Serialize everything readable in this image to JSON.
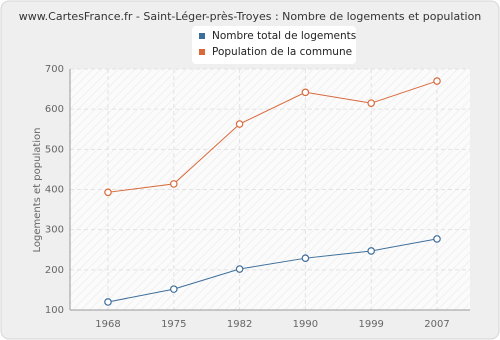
{
  "chart_data": {
    "type": "line",
    "title": "www.CartesFrance.fr - Saint-Léger-près-Troyes : Nombre de logements et population",
    "y_label": "Logements et population",
    "categories": [
      "1968",
      "1975",
      "1982",
      "1990",
      "1999",
      "2007"
    ],
    "series": [
      {
        "name": "Nombre total de logements",
        "color": "#3e6e9a",
        "values": [
          120,
          152,
          202,
          229,
          247,
          277
        ]
      },
      {
        "name": "Population de la commune",
        "color": "#d9693b",
        "values": [
          393,
          414,
          563,
          642,
          615,
          670
        ]
      }
    ],
    "ylim": [
      100,
      700
    ],
    "yticks": [
      100,
      200,
      300,
      400,
      500,
      600,
      700
    ],
    "grid": true
  }
}
